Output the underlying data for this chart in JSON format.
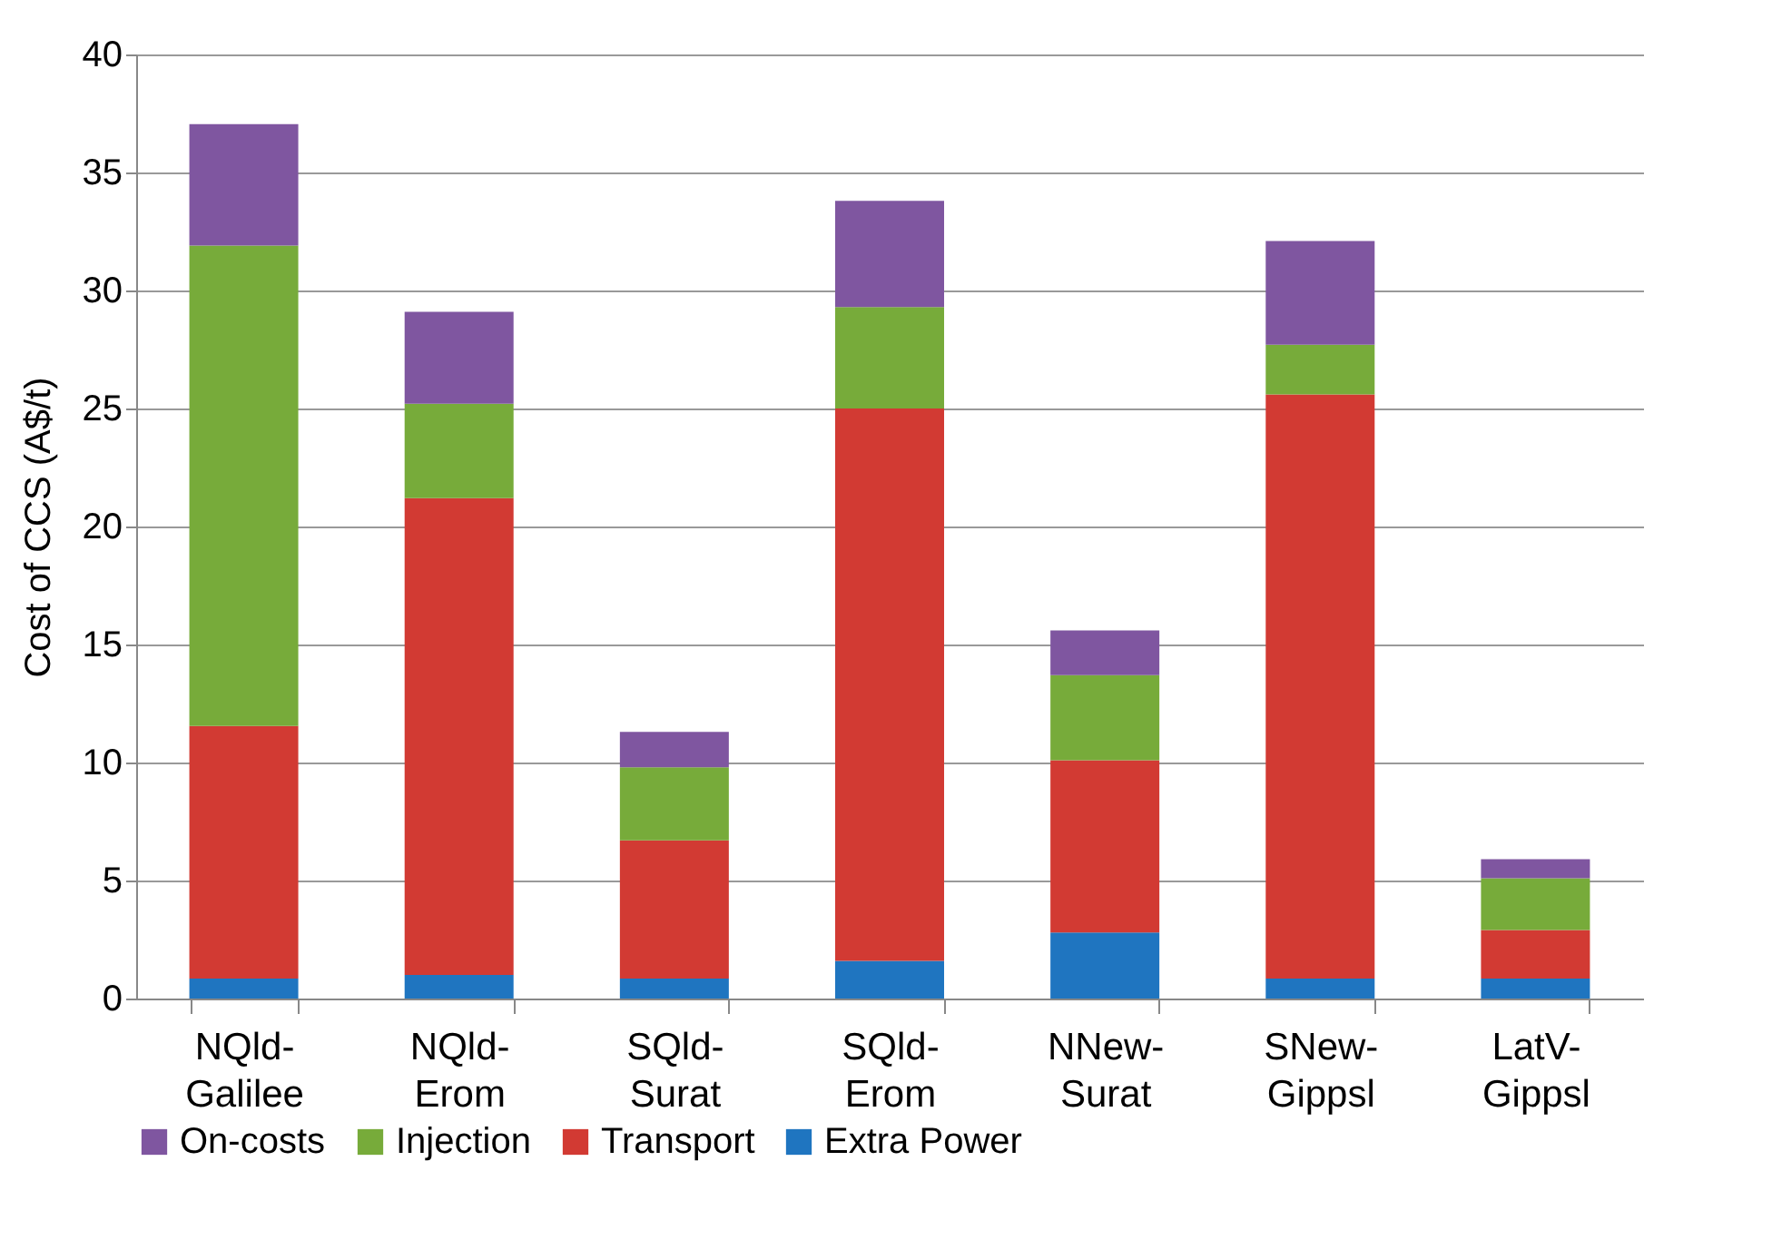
{
  "chart_data": {
    "type": "bar",
    "stacked": true,
    "ylabel": "Cost of CCS (A$/t)",
    "categories": [
      "NQld-Galilee",
      "NQld-Erom",
      "SQld-Surat",
      "SQld-Erom",
      "NNew-Surat",
      "SNew-Gippsl",
      "LatV-Gippsl"
    ],
    "series": [
      {
        "name": "Extra Power",
        "color": "#1f75c0",
        "values": [
          0.85,
          1.0,
          0.85,
          1.6,
          2.8,
          0.85,
          0.85
        ]
      },
      {
        "name": "Transport",
        "color": "#d23a33",
        "values": [
          10.7,
          20.2,
          5.85,
          23.4,
          7.3,
          24.75,
          2.05
        ]
      },
      {
        "name": "Injection",
        "color": "#77ab3a",
        "values": [
          20.35,
          4.0,
          3.1,
          4.3,
          3.6,
          2.1,
          2.2
        ]
      },
      {
        "name": "On-costs",
        "color": "#7f56a0",
        "values": [
          5.15,
          3.9,
          1.5,
          4.5,
          1.9,
          4.4,
          0.8
        ]
      }
    ],
    "ylim": [
      0,
      40
    ],
    "yticks": [
      0,
      5,
      10,
      15,
      20,
      25,
      30,
      35,
      40
    ],
    "grid": "y",
    "legend": "bottom"
  }
}
